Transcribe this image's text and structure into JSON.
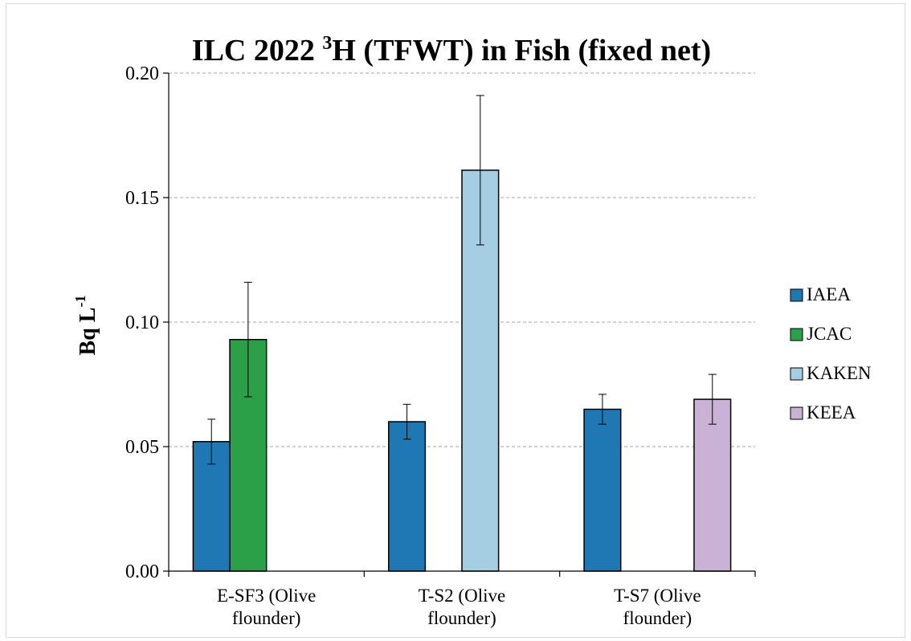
{
  "chart_data": {
    "type": "bar",
    "title": {
      "prefix": "ILC 2022 ",
      "superscript": "3",
      "suffix": "H (TFWT) in Fish (fixed net)"
    },
    "ylabel": {
      "base": "Bq L",
      "superscript": "-1"
    },
    "xlabel": "",
    "ylim": [
      0,
      0.2
    ],
    "yticks": [
      "0.00",
      "0.05",
      "0.10",
      "0.15",
      "0.20"
    ],
    "ytick_values": [
      0,
      0.05,
      0.1,
      0.15,
      0.2
    ],
    "grid": "horizontal dashed",
    "legend_position": "right",
    "categories": [
      [
        "E-SF3 (Olive",
        "flounder)"
      ],
      [
        "T-S2 (Olive",
        "flounder)"
      ],
      [
        "T-S7 (Olive",
        "flounder)"
      ]
    ],
    "series": [
      {
        "name": "IAEA",
        "color": "#1f77b4",
        "values": [
          0.052,
          0.06,
          0.065
        ],
        "errors": [
          0.009,
          0.007,
          0.006
        ]
      },
      {
        "name": "JCAC",
        "color": "#2ca048",
        "values": [
          0.093,
          null,
          null
        ],
        "errors": [
          0.023,
          null,
          null
        ]
      },
      {
        "name": "KAKEN",
        "color": "#a6cee3",
        "values": [
          null,
          0.161,
          null
        ],
        "errors": [
          null,
          0.03,
          null
        ]
      },
      {
        "name": "KEEA",
        "color": "#c9b2d6",
        "values": [
          null,
          null,
          0.069
        ],
        "errors": [
          null,
          null,
          0.01
        ]
      }
    ]
  }
}
